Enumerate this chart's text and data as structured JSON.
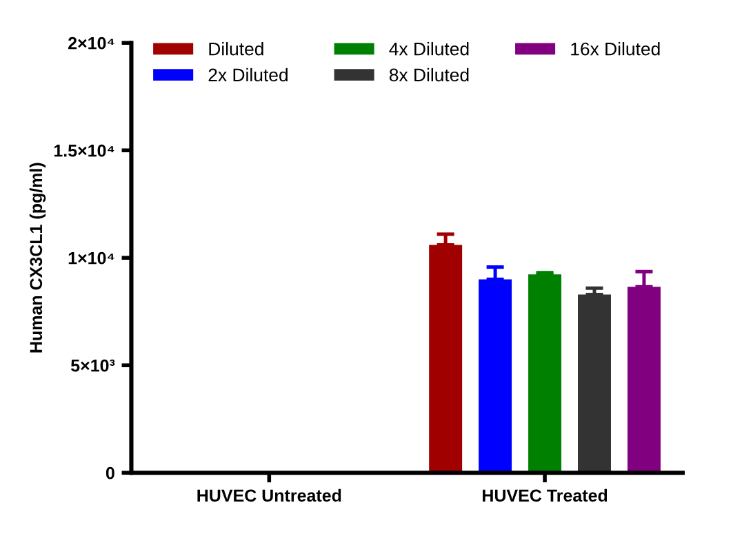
{
  "chart_data": {
    "type": "bar",
    "ylabel": "Human CX3CL1 (pg/ml)",
    "categories": [
      "HUVEC Untreated",
      "HUVEC Treated"
    ],
    "series": [
      {
        "name": "Diluted",
        "color": "#a00000",
        "values": [
          null,
          10600
        ],
        "errors": [
          null,
          [
            10600,
            11100
          ]
        ]
      },
      {
        "name": "2x Diluted",
        "color": "#0000ff",
        "values": [
          null,
          9000
        ],
        "errors": [
          null,
          [
            9000,
            9570
          ]
        ]
      },
      {
        "name": "4x Diluted",
        "color": "#008000",
        "values": [
          null,
          9230
        ],
        "errors": [
          null,
          [
            9230,
            9310
          ]
        ]
      },
      {
        "name": "8x Diluted",
        "color": "#333333",
        "values": [
          null,
          8290
        ],
        "errors": [
          null,
          [
            8290,
            8590
          ]
        ]
      },
      {
        "name": "16x Diluted",
        "color": "#800080",
        "values": [
          null,
          8650
        ],
        "errors": [
          null,
          [
            8650,
            9360
          ]
        ]
      }
    ],
    "ylim": [
      0,
      20000
    ],
    "yticks": [
      0,
      {
        "value": 5000,
        "label": "5×10³"
      },
      {
        "value": 10000,
        "label": "1×10⁴"
      },
      {
        "value": 15000,
        "label": "1.5×10⁴"
      },
      {
        "value": 20000,
        "label": "2×10⁴"
      }
    ],
    "grid": false,
    "legend": "top"
  }
}
